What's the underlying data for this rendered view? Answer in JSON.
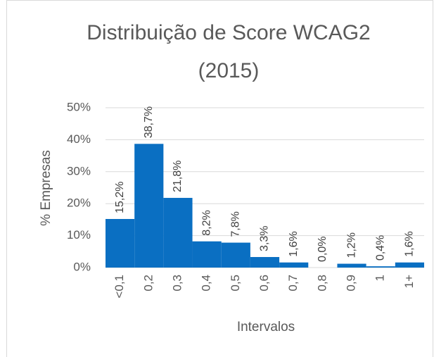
{
  "chart_data": {
    "type": "bar",
    "title": [
      "Distribuição de Score WCAG2",
      "(2015)"
    ],
    "x_label": "Intervalos",
    "y_label": "% Empresas",
    "categories": [
      "<0,1",
      "0,2",
      "0,3",
      "0,4",
      "0,5",
      "0,6",
      "0,7",
      "0,8",
      "0,9",
      "1",
      "1+"
    ],
    "values": [
      15.2,
      38.7,
      21.8,
      8.2,
      7.8,
      3.3,
      1.6,
      0.0,
      1.2,
      0.4,
      1.6
    ],
    "value_labels": [
      "15,2%",
      "38,7%",
      "21,8%",
      "8,2%",
      "7,8%",
      "3,3%",
      "1,6%",
      "0,0%",
      "1,2%",
      "0,4%",
      "1,6%"
    ],
    "color": "#0a6fc2",
    "ylim": [
      0,
      50
    ],
    "yticks": [
      {
        "value": 0,
        "label": "0%"
      },
      {
        "value": 10,
        "label": "10%"
      },
      {
        "value": 20,
        "label": "20%"
      },
      {
        "value": 30,
        "label": "30%"
      },
      {
        "value": 40,
        "label": "40%"
      },
      {
        "value": 50,
        "label": "50%"
      }
    ],
    "grid": true
  }
}
